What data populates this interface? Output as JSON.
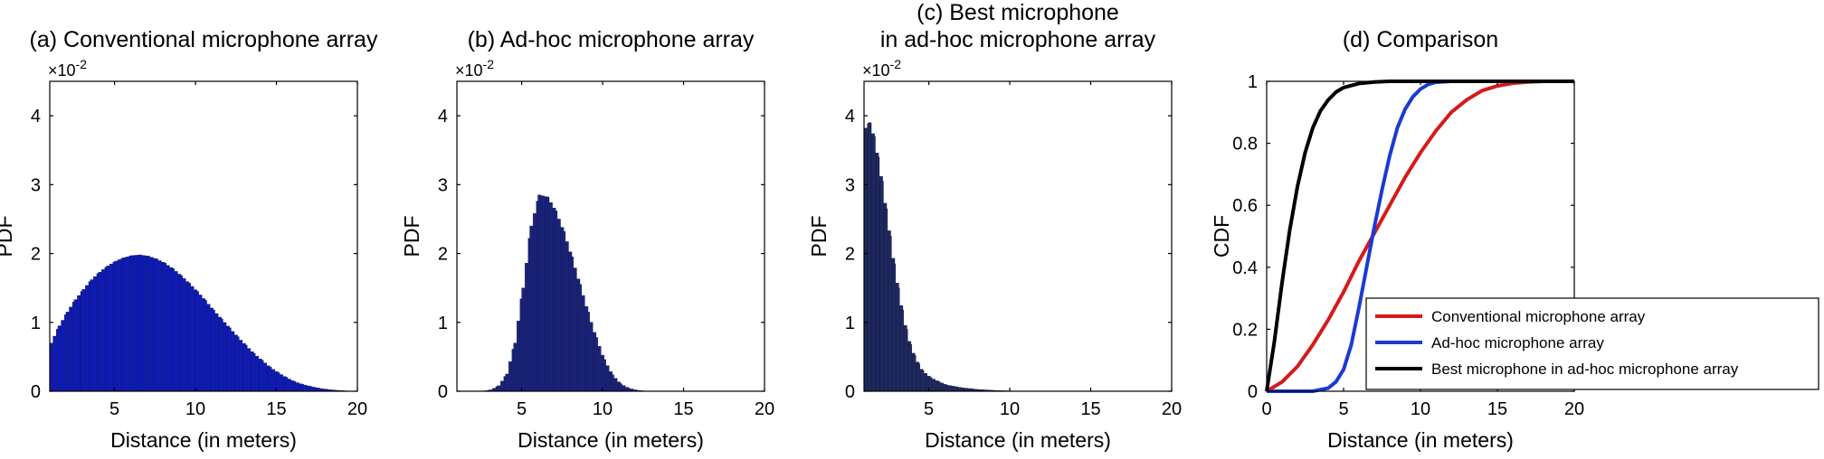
{
  "chart_data": [
    {
      "type": "bar",
      "title": "(a) Conventional microphone array",
      "xlabel": "Distance (in meters)",
      "ylabel": "PDF",
      "exponent_label": "×10",
      "exponent_power": "-2",
      "xlim": [
        1,
        20
      ],
      "ylim": [
        0,
        4.5
      ],
      "xticks": [
        5,
        10,
        15,
        20
      ],
      "yticks": [
        0,
        1,
        2,
        3,
        4
      ],
      "bar_color": "#0f1bb8",
      "bin_width": 0.2,
      "bins": [
        [
          1.0,
          0.7
        ],
        [
          1.5,
          0.95
        ],
        [
          2.0,
          1.15
        ],
        [
          2.5,
          1.33
        ],
        [
          3.0,
          1.48
        ],
        [
          3.5,
          1.62
        ],
        [
          4.0,
          1.73
        ],
        [
          4.5,
          1.82
        ],
        [
          5.0,
          1.89
        ],
        [
          5.5,
          1.94
        ],
        [
          6.0,
          1.97
        ],
        [
          6.5,
          1.98
        ],
        [
          7.0,
          1.96
        ],
        [
          7.5,
          1.92
        ],
        [
          8.0,
          1.86
        ],
        [
          8.5,
          1.78
        ],
        [
          9.0,
          1.68
        ],
        [
          9.5,
          1.57
        ],
        [
          10.0,
          1.45
        ],
        [
          10.5,
          1.32
        ],
        [
          11.0,
          1.18
        ],
        [
          11.5,
          1.05
        ],
        [
          12.0,
          0.92
        ],
        [
          12.5,
          0.79
        ],
        [
          13.0,
          0.67
        ],
        [
          13.5,
          0.55
        ],
        [
          14.0,
          0.45
        ],
        [
          14.5,
          0.35
        ],
        [
          15.0,
          0.27
        ],
        [
          15.5,
          0.2
        ],
        [
          16.0,
          0.14
        ],
        [
          16.5,
          0.1
        ],
        [
          17.0,
          0.07
        ],
        [
          17.5,
          0.045
        ],
        [
          18.0,
          0.028
        ],
        [
          18.5,
          0.016
        ],
        [
          19.0,
          0.008
        ],
        [
          19.5,
          0.003
        ],
        [
          20.0,
          0.0
        ]
      ]
    },
    {
      "type": "bar",
      "title": "(b) Ad-hoc microphone array",
      "xlabel": "Distance (in meters)",
      "ylabel": "PDF",
      "exponent_label": "×10",
      "exponent_power": "-2",
      "xlim": [
        1,
        20
      ],
      "ylim": [
        0,
        4.5
      ],
      "xticks": [
        5,
        10,
        15,
        20
      ],
      "yticks": [
        0,
        1,
        2,
        3,
        4
      ],
      "bar_color": "#1a237a",
      "bin_width": 0.2,
      "bins": [
        [
          2.5,
          0.0
        ],
        [
          3.0,
          0.02
        ],
        [
          3.5,
          0.08
        ],
        [
          4.0,
          0.25
        ],
        [
          4.5,
          0.7
        ],
        [
          5.0,
          1.5
        ],
        [
          5.5,
          2.4
        ],
        [
          6.0,
          2.85
        ],
        [
          6.5,
          2.82
        ],
        [
          7.0,
          2.62
        ],
        [
          7.5,
          2.32
        ],
        [
          8.0,
          1.95
        ],
        [
          8.5,
          1.55
        ],
        [
          9.0,
          1.15
        ],
        [
          9.5,
          0.78
        ],
        [
          10.0,
          0.46
        ],
        [
          10.5,
          0.24
        ],
        [
          11.0,
          0.11
        ],
        [
          11.5,
          0.045
        ],
        [
          12.0,
          0.015
        ],
        [
          12.5,
          0.004
        ],
        [
          13.0,
          0.0
        ]
      ]
    },
    {
      "type": "bar",
      "title": [
        "(c) Best microphone",
        "in ad-hoc microphone array"
      ],
      "xlabel": "Distance (in meters)",
      "ylabel": "PDF",
      "exponent_label": "×10",
      "exponent_power": "-2",
      "xlim": [
        1,
        20
      ],
      "ylim": [
        0,
        4.5
      ],
      "xticks": [
        5,
        10,
        15,
        20
      ],
      "yticks": [
        0,
        1,
        2,
        3,
        4
      ],
      "bar_color": "#1f2a5c",
      "bin_width": 0.2,
      "bins": [
        [
          1.0,
          3.82
        ],
        [
          1.25,
          3.9
        ],
        [
          1.5,
          3.7
        ],
        [
          1.75,
          3.4
        ],
        [
          2.0,
          3.05
        ],
        [
          2.25,
          2.65
        ],
        [
          2.5,
          2.25
        ],
        [
          2.75,
          1.85
        ],
        [
          3.0,
          1.5
        ],
        [
          3.25,
          1.18
        ],
        [
          3.5,
          0.9
        ],
        [
          3.75,
          0.68
        ],
        [
          4.0,
          0.52
        ],
        [
          4.25,
          0.4
        ],
        [
          4.5,
          0.3
        ],
        [
          5.0,
          0.2
        ],
        [
          5.5,
          0.14
        ],
        [
          6.0,
          0.09
        ],
        [
          7.0,
          0.05
        ],
        [
          8.0,
          0.025
        ],
        [
          9.0,
          0.012
        ],
        [
          10.0,
          0.005
        ],
        [
          12.0,
          0.0
        ]
      ]
    },
    {
      "type": "line",
      "title": "(d) Comparison",
      "xlabel": "Distance (in meters)",
      "ylabel": "CDF",
      "xlim": [
        0,
        20
      ],
      "ylim": [
        0,
        1
      ],
      "xticks": [
        0,
        5,
        10,
        15,
        20
      ],
      "yticks": [
        0,
        0.2,
        0.4,
        0.6,
        0.8,
        1
      ],
      "legend_position": "bottom-right",
      "series": [
        {
          "name": "Conventional microphone array",
          "color": "#d41a1a",
          "points": [
            [
              0,
              0
            ],
            [
              1,
              0.03
            ],
            [
              2,
              0.08
            ],
            [
              3,
              0.15
            ],
            [
              4,
              0.23
            ],
            [
              5,
              0.32
            ],
            [
              6,
              0.42
            ],
            [
              7,
              0.51
            ],
            [
              8,
              0.6
            ],
            [
              9,
              0.69
            ],
            [
              10,
              0.77
            ],
            [
              11,
              0.84
            ],
            [
              12,
              0.9
            ],
            [
              13,
              0.94
            ],
            [
              14,
              0.97
            ],
            [
              15,
              0.985
            ],
            [
              16,
              0.994
            ],
            [
              17,
              0.998
            ],
            [
              18,
              1.0
            ],
            [
              20,
              1.0
            ]
          ]
        },
        {
          "name": "Ad-hoc microphone array",
          "color": "#1a3ad4",
          "points": [
            [
              0,
              0
            ],
            [
              3,
              0
            ],
            [
              4,
              0.01
            ],
            [
              4.5,
              0.03
            ],
            [
              5,
              0.07
            ],
            [
              5.5,
              0.15
            ],
            [
              6,
              0.27
            ],
            [
              6.5,
              0.4
            ],
            [
              7,
              0.53
            ],
            [
              7.5,
              0.65
            ],
            [
              8,
              0.76
            ],
            [
              8.5,
              0.85
            ],
            [
              9,
              0.91
            ],
            [
              9.5,
              0.95
            ],
            [
              10,
              0.975
            ],
            [
              10.5,
              0.99
            ],
            [
              11,
              0.997
            ],
            [
              12,
              1.0
            ],
            [
              20,
              1.0
            ]
          ]
        },
        {
          "name": "Best microphone in ad-hoc microphone array",
          "color": "#000000",
          "points": [
            [
              0,
              0
            ],
            [
              0.5,
              0.16
            ],
            [
              1,
              0.35
            ],
            [
              1.5,
              0.52
            ],
            [
              2,
              0.66
            ],
            [
              2.5,
              0.77
            ],
            [
              3,
              0.85
            ],
            [
              3.5,
              0.905
            ],
            [
              4,
              0.94
            ],
            [
              4.5,
              0.965
            ],
            [
              5,
              0.98
            ],
            [
              6,
              0.993
            ],
            [
              7,
              0.998
            ],
            [
              8,
              1.0
            ],
            [
              20,
              1.0
            ]
          ]
        }
      ]
    }
  ]
}
